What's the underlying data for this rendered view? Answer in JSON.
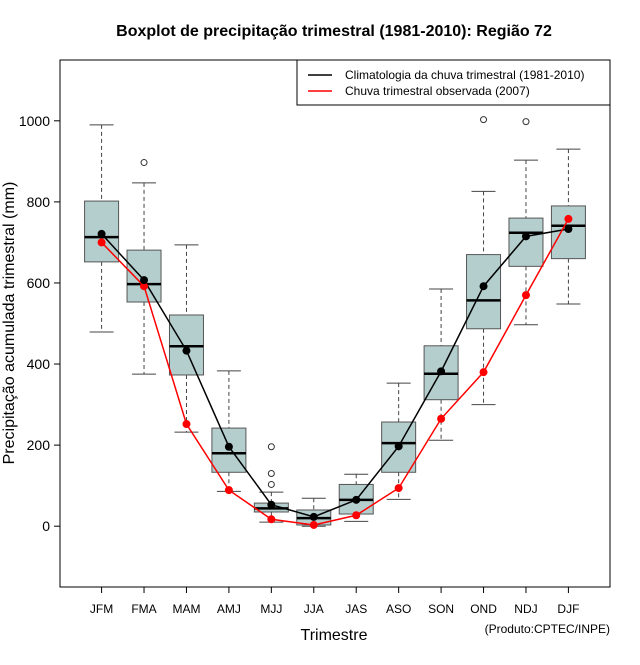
{
  "chart_data": {
    "type": "box",
    "title": "Boxplot de precipitação trimestral (1981-2010): Região 72",
    "xlabel": "Trimestre",
    "ylabel": "Precipitação acumulada trimestral (mm)",
    "ylim": [
      -150,
      1150
    ],
    "yticks": [
      0,
      200,
      400,
      600,
      800,
      1000
    ],
    "categories": [
      "JFM",
      "FMA",
      "MAM",
      "AMJ",
      "MJJ",
      "JJA",
      "JAS",
      "ASO",
      "SON",
      "OND",
      "NDJ",
      "DJF"
    ],
    "boxes": [
      {
        "low": 479,
        "q1": 652,
        "median": 713,
        "q3": 802,
        "high": 990,
        "outliers": []
      },
      {
        "low": 375,
        "q1": 553,
        "median": 597,
        "q3": 681,
        "high": 847,
        "outliers": [
          897
        ]
      },
      {
        "low": 232,
        "q1": 373,
        "median": 444,
        "q3": 521,
        "high": 694,
        "outliers": []
      },
      {
        "low": 86,
        "q1": 133,
        "median": 180,
        "q3": 242,
        "high": 383,
        "outliers": []
      },
      {
        "low": 10,
        "q1": 35,
        "median": 44,
        "q3": 57,
        "high": 84,
        "outliers": [
          103,
          130,
          196
        ]
      },
      {
        "low": 0,
        "q1": 3,
        "median": 20,
        "q3": 40,
        "high": 69,
        "outliers": []
      },
      {
        "low": 12,
        "q1": 30,
        "median": 65,
        "q3": 103,
        "high": 128,
        "outliers": []
      },
      {
        "low": 66,
        "q1": 133,
        "median": 205,
        "q3": 257,
        "high": 353,
        "outliers": []
      },
      {
        "low": 212,
        "q1": 312,
        "median": 376,
        "q3": 445,
        "high": 585,
        "outliers": []
      },
      {
        "low": 300,
        "q1": 487,
        "median": 557,
        "q3": 670,
        "high": 826,
        "outliers": [
          1003
        ]
      },
      {
        "low": 497,
        "q1": 641,
        "median": 724,
        "q3": 760,
        "high": 903,
        "outliers": [
          998
        ]
      },
      {
        "low": 548,
        "q1": 660,
        "median": 741,
        "q3": 790,
        "high": 930,
        "outliers": []
      }
    ],
    "series": [
      {
        "name": "Climatologia da chuva trimestral (1981-2010)",
        "color": "#000000",
        "values": [
          721,
          607,
          433,
          196,
          53,
          23,
          65,
          197,
          382,
          592,
          715,
          733
        ]
      },
      {
        "name": "Chuva trimestral observada (2007)",
        "color": "#ff0000",
        "values": [
          700,
          592,
          252,
          89,
          17,
          3,
          27,
          94,
          265,
          380,
          570,
          758
        ]
      }
    ],
    "legend_position": "top-right",
    "box_fill": "#b4cece",
    "footnote": "(Produto:CPTEC/INPE)"
  }
}
